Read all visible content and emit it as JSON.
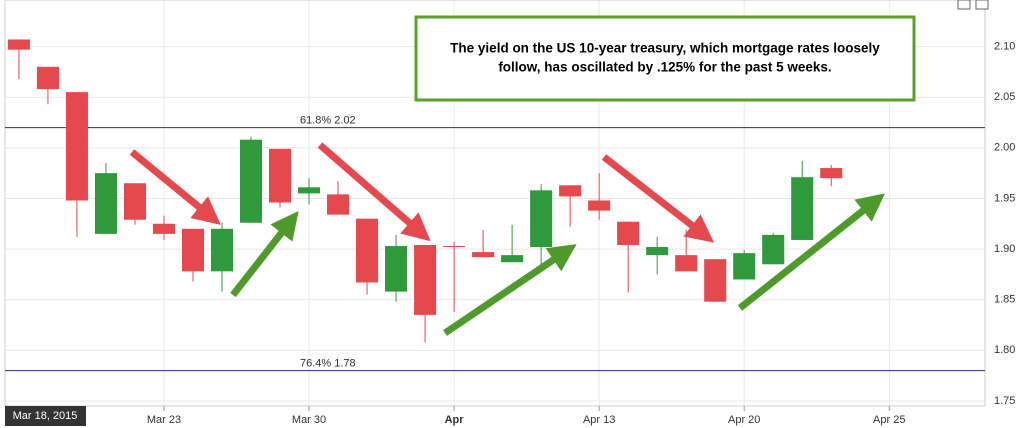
{
  "chart_data": {
    "type": "candlestick",
    "x": [
      0,
      1,
      2,
      3,
      4,
      5,
      6,
      7,
      8,
      9,
      10,
      11,
      12,
      13,
      14,
      15,
      16,
      17,
      18,
      19,
      20,
      21,
      22,
      23,
      24,
      25,
      26,
      27,
      28
    ],
    "open": [
      2.107,
      2.08,
      2.055,
      1.915,
      1.965,
      1.925,
      1.92,
      1.878,
      1.926,
      1.999,
      1.955,
      1.954,
      1.93,
      1.858,
      1.904,
      1.903,
      1.897,
      1.887,
      1.902,
      1.963,
      1.948,
      1.927,
      1.894,
      1.894,
      1.89,
      1.87,
      1.885,
      1.909,
      1.98
    ],
    "high": [
      2.107,
      2.08,
      2.055,
      1.985,
      1.965,
      1.933,
      1.92,
      1.926,
      2.011,
      1.999,
      1.97,
      1.967,
      1.93,
      1.914,
      1.904,
      1.907,
      1.919,
      1.924,
      1.964,
      1.963,
      1.975,
      1.927,
      1.912,
      1.919,
      1.89,
      1.899,
      1.916,
      1.987,
      1.983
    ],
    "low": [
      2.068,
      2.043,
      1.912,
      1.915,
      1.924,
      1.909,
      1.868,
      1.858,
      1.926,
      1.941,
      1.944,
      1.934,
      1.855,
      1.848,
      1.808,
      1.838,
      1.892,
      1.887,
      1.878,
      1.922,
      1.929,
      1.857,
      1.875,
      1.878,
      1.848,
      1.87,
      1.885,
      1.909,
      1.962
    ],
    "close": [
      2.097,
      2.058,
      1.948,
      1.975,
      1.929,
      1.915,
      1.878,
      1.92,
      2.008,
      1.946,
      1.961,
      1.934,
      1.867,
      1.903,
      1.835,
      1.902,
      1.892,
      1.894,
      1.958,
      1.952,
      1.938,
      1.904,
      1.902,
      1.878,
      1.848,
      1.896,
      1.914,
      1.971,
      1.97
    ],
    "up_color": "#2f9a3c",
    "down_color": "#e5484d",
    "xlim": [
      -0.48,
      33.3
    ],
    "xticks": [
      {
        "value": 5,
        "label": "Mar 23"
      },
      {
        "value": 10,
        "label": "Mar 30"
      },
      {
        "value": 15,
        "label": "Apr"
      },
      {
        "value": 20,
        "label": "Apr 13"
      },
      {
        "value": 25,
        "label": "Apr 20"
      },
      {
        "value": 30,
        "label": "Apr 25"
      }
    ],
    "ylim": [
      1.745,
      2.146
    ],
    "yticks": [
      1.75,
      {
        "value": 1.8,
        "label": "1.80"
      },
      1.85,
      {
        "value": 1.9,
        "label": "1.90"
      },
      1.95,
      {
        "value": 2.0,
        "label": "2.00"
      },
      2.05,
      {
        "value": 2.1,
        "label": "2.10"
      }
    ],
    "grid": true,
    "levels": [
      {
        "value": 2.02,
        "label": "61.8% 2.02",
        "color": "#2c2c8c"
      },
      {
        "value": 1.78,
        "label": "76.4% 1.78",
        "color": "#2c2c8c"
      }
    ],
    "crosshair_label": "Mar 18, 2015",
    "annotation_lines": [
      "The yield on the US 10-year treasury, which mortgage rates loosely",
      "follow, has oscillated by .125% for the past 5 weeks."
    ]
  }
}
